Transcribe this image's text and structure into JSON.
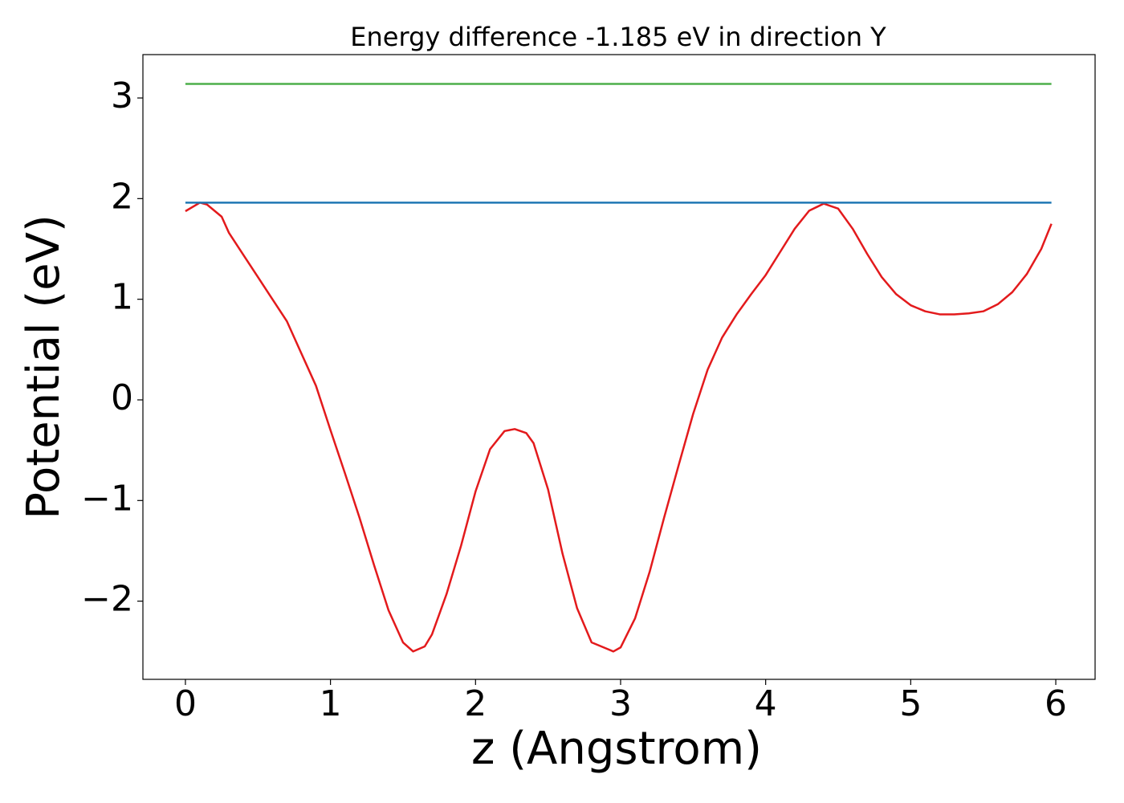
{
  "chart_data": {
    "type": "line",
    "title": "Energy difference -1.185 eV in direction Y",
    "x_label": "z (Angstrom)",
    "y_label": "Potential (eV)",
    "xlim": [
      -0.293,
      6.271
    ],
    "ylim": [
      -2.777,
      3.431
    ],
    "xticks": [
      0,
      1,
      2,
      3,
      4,
      5,
      6
    ],
    "yticks": [
      {
        "value": -2,
        "label": "−2"
      },
      {
        "value": -1,
        "label": "−1"
      },
      0,
      1,
      2,
      3
    ],
    "series": [
      {
        "color": "#e31a1c",
        "x": [
          0,
          0.1,
          0.15,
          0.25,
          0.3,
          0.4,
          0.5,
          0.6,
          0.7,
          0.8,
          0.9,
          1.0,
          1.1,
          1.2,
          1.3,
          1.4,
          1.5,
          1.57,
          1.65,
          1.7,
          1.8,
          1.9,
          2.0,
          2.1,
          2.2,
          2.27,
          2.35,
          2.4,
          2.5,
          2.6,
          2.7,
          2.8,
          2.9,
          2.95,
          3.0,
          3.1,
          3.2,
          3.3,
          3.4,
          3.5,
          3.6,
          3.7,
          3.8,
          3.9,
          4.0,
          4.1,
          4.2,
          4.3,
          4.4,
          4.5,
          4.6,
          4.7,
          4.8,
          4.9,
          5.0,
          5.1,
          5.2,
          5.3,
          5.4,
          5.5,
          5.6,
          5.7,
          5.8,
          5.9,
          5.97
        ],
        "values": [
          1.875,
          1.96,
          1.94,
          1.82,
          1.66,
          1.44,
          1.22,
          1.0,
          0.78,
          0.46,
          0.14,
          -0.3,
          -0.73,
          -1.17,
          -1.64,
          -2.09,
          -2.41,
          -2.5,
          -2.45,
          -2.33,
          -1.93,
          -1.45,
          -0.91,
          -0.49,
          -0.31,
          -0.29,
          -0.33,
          -0.43,
          -0.89,
          -1.53,
          -2.07,
          -2.41,
          -2.47,
          -2.5,
          -2.46,
          -2.17,
          -1.71,
          -1.17,
          -0.65,
          -0.14,
          0.3,
          0.62,
          0.85,
          1.05,
          1.24,
          1.47,
          1.7,
          1.88,
          1.95,
          1.9,
          1.7,
          1.45,
          1.22,
          1.05,
          0.94,
          0.88,
          0.85,
          0.85,
          0.86,
          0.88,
          0.95,
          1.07,
          1.25,
          1.5,
          1.75
        ]
      },
      {
        "color": "#1f77b4",
        "x": [
          0,
          5.97
        ],
        "values": [
          1.96,
          1.96
        ]
      },
      {
        "color": "#4daf4a",
        "x": [
          0,
          5.97
        ],
        "values": [
          3.14,
          3.14
        ]
      }
    ]
  }
}
